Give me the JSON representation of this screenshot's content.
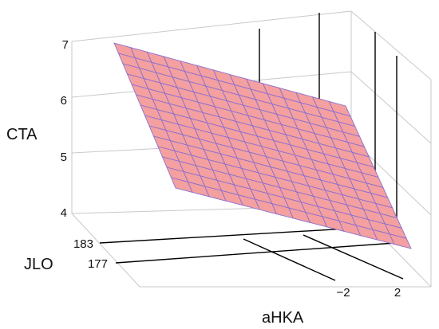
{
  "chart_data": {
    "type": "surface",
    "xlabel": "aHKA",
    "ylabel": "JLO",
    "zlabel": "CTA",
    "x_ticks": [
      "−2",
      "2"
    ],
    "y_ticks": [
      "183",
      "177"
    ],
    "z_ticks": [
      "7",
      "6",
      "5",
      "4"
    ],
    "zlim": [
      4,
      7
    ],
    "grid": true,
    "surface": {
      "description_free": true,
      "mesh": [
        14,
        14
      ],
      "z_at_corners": {
        "left_back": 7.0,
        "right_back": 6.0,
        "left_front": 4.55,
        "right_front": 3.55
      }
    },
    "vertical_drop_lines": 4,
    "colors": {
      "surface_fill": "#f4a0a0",
      "surface_edge": "#8a6fd0",
      "box": "#c9c9c9",
      "lines": "#000000"
    }
  }
}
